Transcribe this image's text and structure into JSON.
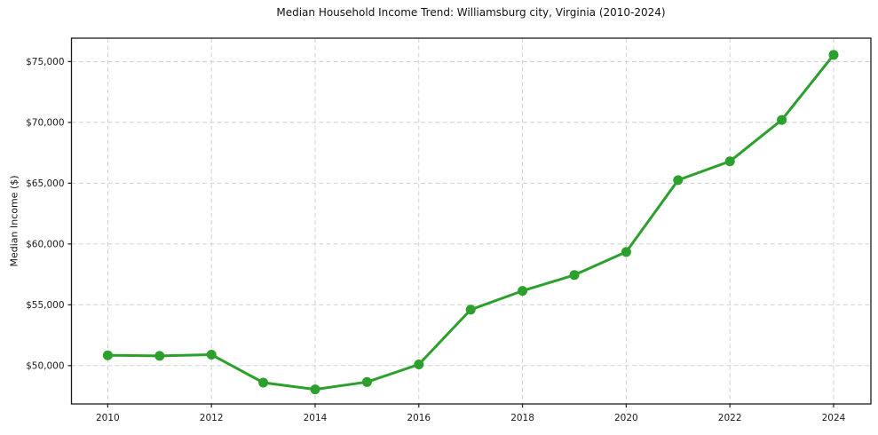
{
  "chart_data": {
    "type": "line",
    "title": "Median Household Income Trend: Williamsburg city, Virginia (2010-2024)",
    "xlabel": "",
    "ylabel": "Median Income ($)",
    "series": [
      {
        "name": "Median household income",
        "x": [
          2010,
          2011,
          2012,
          2013,
          2014,
          2015,
          2016,
          2017,
          2018,
          2019,
          2020,
          2021,
          2022,
          2023,
          2024
        ],
        "y": [
          50850,
          50800,
          50900,
          48600,
          48050,
          48650,
          50100,
          54600,
          56150,
          57450,
          59350,
          65250,
          66800,
          70200,
          75550
        ]
      }
    ],
    "xlim": [
      2009.3,
      2024.72
    ],
    "ylim": [
      46850,
      76925
    ],
    "x_ticks": [
      2010,
      2012,
      2014,
      2016,
      2018,
      2020,
      2022,
      2024
    ],
    "x_tick_labels": [
      "2010",
      "2012",
      "2014",
      "2016",
      "2018",
      "2020",
      "2022",
      "2024"
    ],
    "y_ticks": [
      50000,
      55000,
      60000,
      65000,
      70000,
      75000
    ],
    "y_tick_labels": [
      "$50,000",
      "$55,000",
      "$60,000",
      "$65,000",
      "$70,000",
      "$75,000"
    ],
    "grid": true,
    "grid_style": "dashed",
    "legend_position": "none",
    "colors": {
      "line": "#2ca02c",
      "marker": "#2ca02c",
      "grid": "#cccccc",
      "axis": "#1a1a1a",
      "background": "#ffffff",
      "text": "#1a1a1a"
    }
  }
}
